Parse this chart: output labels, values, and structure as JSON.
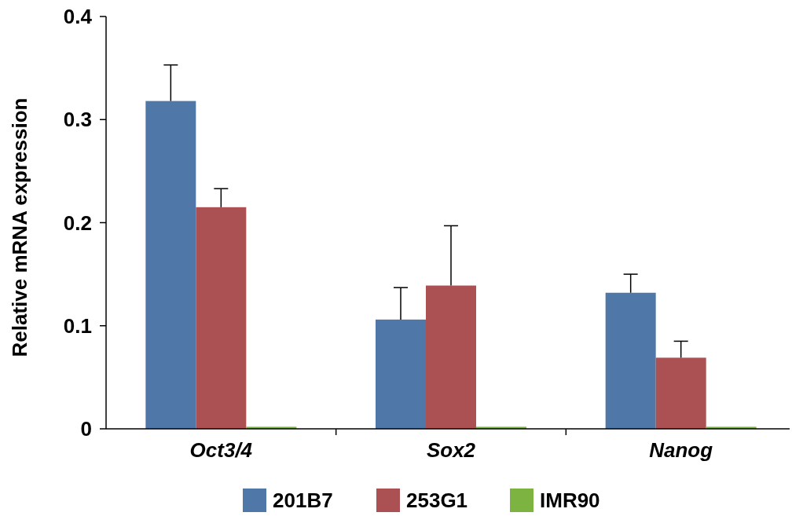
{
  "chart_data": {
    "type": "bar",
    "ylabel": "Relative mRNA expression",
    "categories": [
      "Oct3/4",
      "Sox2",
      "Nanog"
    ],
    "series": [
      {
        "name": "201B7",
        "color": "#4f78a8",
        "values": [
          0.318,
          0.106,
          0.132
        ],
        "errors": [
          [
            0.318,
            0.353
          ],
          [
            0.106,
            0.137
          ],
          [
            0.132,
            0.15
          ]
        ]
      },
      {
        "name": "253G1",
        "color": "#ab5053",
        "values": [
          0.215,
          0.139,
          0.069
        ],
        "errors": [
          [
            0.215,
            0.233
          ],
          [
            0.139,
            0.197
          ],
          [
            0.069,
            0.085
          ]
        ]
      },
      {
        "name": "IMR90",
        "color": "#7db340",
        "values": [
          0.002,
          0.002,
          0.002
        ]
      }
    ],
    "ylim": [
      0,
      0.4
    ],
    "yticks": [
      {
        "value": 0,
        "label": "0"
      },
      0.1,
      0.2,
      0.3,
      0.4
    ],
    "grid": false,
    "legend": "bottom"
  }
}
